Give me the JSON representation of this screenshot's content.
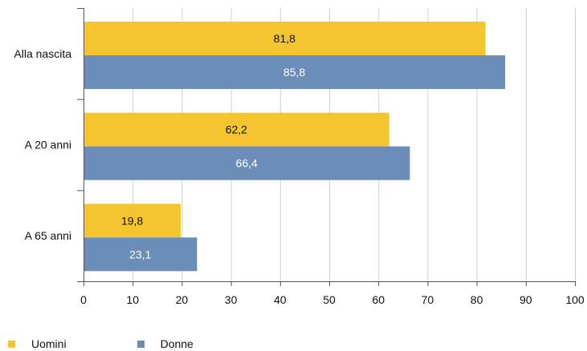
{
  "chart_data": {
    "type": "bar",
    "orientation": "horizontal",
    "categories": [
      "Alla nascita",
      "A 20 anni",
      "A 65 anni"
    ],
    "series": [
      {
        "name": "Uomini",
        "values": [
          81.8,
          62.2,
          19.8
        ],
        "labels": [
          "81,8",
          "62,2",
          "19,8"
        ],
        "color": "#F5C52F"
      },
      {
        "name": "Donne",
        "values": [
          85.8,
          66.4,
          23.1
        ],
        "labels": [
          "85,8",
          "66,4",
          "23,1"
        ],
        "color": "#6B8DB8"
      }
    ],
    "xlim": [
      0,
      100
    ],
    "xticks": [
      0,
      10,
      20,
      30,
      40,
      50,
      60,
      70,
      80,
      90,
      100
    ],
    "xtick_labels": [
      "0",
      "10",
      "20",
      "30",
      "40",
      "50",
      "60",
      "70",
      "80",
      "90",
      "100"
    ],
    "grid": "vertical",
    "legend_position": "bottom-left",
    "colors": {
      "grid": "#D0D0D0",
      "axis": "#555555",
      "label_on_yellow": "#111111",
      "label_on_blue": "#FFFFFF"
    }
  }
}
